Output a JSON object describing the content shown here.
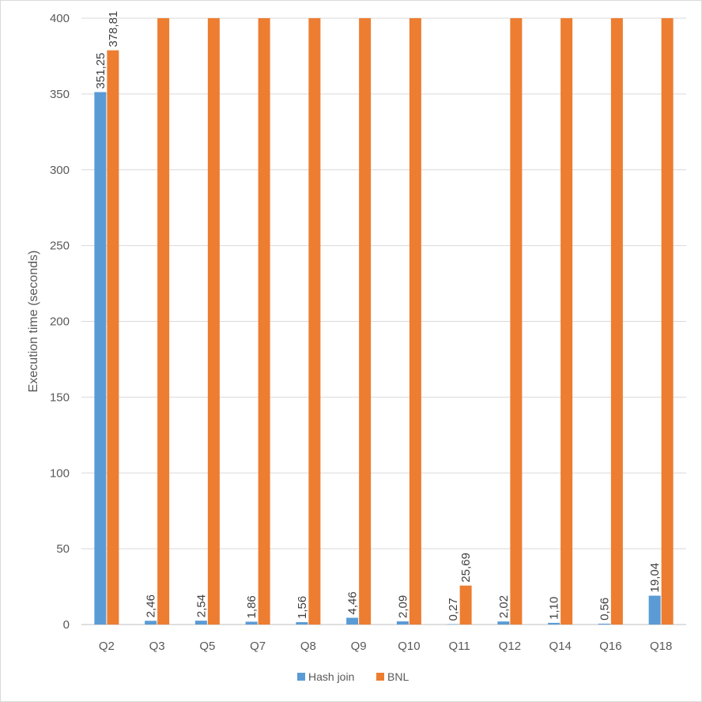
{
  "chart_data": {
    "type": "bar",
    "title": "",
    "xlabel": "",
    "ylabel": "Execution time (seconds)",
    "ylim": [
      0,
      400
    ],
    "yticks": [
      0,
      50,
      100,
      150,
      200,
      250,
      300,
      350,
      400
    ],
    "ytick_labels": [
      "0",
      "50",
      "100",
      "150",
      "200",
      "250",
      "300",
      "350",
      "400"
    ],
    "grid": true,
    "legend_position": "bottom",
    "categories": [
      "Q2",
      "Q3",
      "Q5",
      "Q7",
      "Q8",
      "Q9",
      "Q10",
      "Q11",
      "Q12",
      "Q14",
      "Q16",
      "Q18"
    ],
    "series": [
      {
        "name": "Hash join",
        "color": "#5B9BD5",
        "values": [
          351.25,
          2.46,
          2.54,
          1.86,
          1.56,
          4.46,
          2.09,
          0.27,
          2.02,
          1.1,
          0.56,
          19.04
        ],
        "data_labels": [
          "351,25",
          "2,46",
          "2,54",
          "1,86",
          "1,56",
          "4,46",
          "2,09",
          "0,27",
          "2,02",
          "1,10",
          "0,56",
          "19,04"
        ]
      },
      {
        "name": "BNL",
        "color": "#ED7D31",
        "values": [
          378.81,
          400,
          400,
          400,
          400,
          400,
          400,
          25.69,
          400,
          400,
          400,
          400
        ],
        "data_labels": [
          "378,81",
          "",
          "",
          "",
          "",
          "",
          "",
          "25,69",
          "",
          "",
          "",
          ""
        ]
      }
    ]
  }
}
